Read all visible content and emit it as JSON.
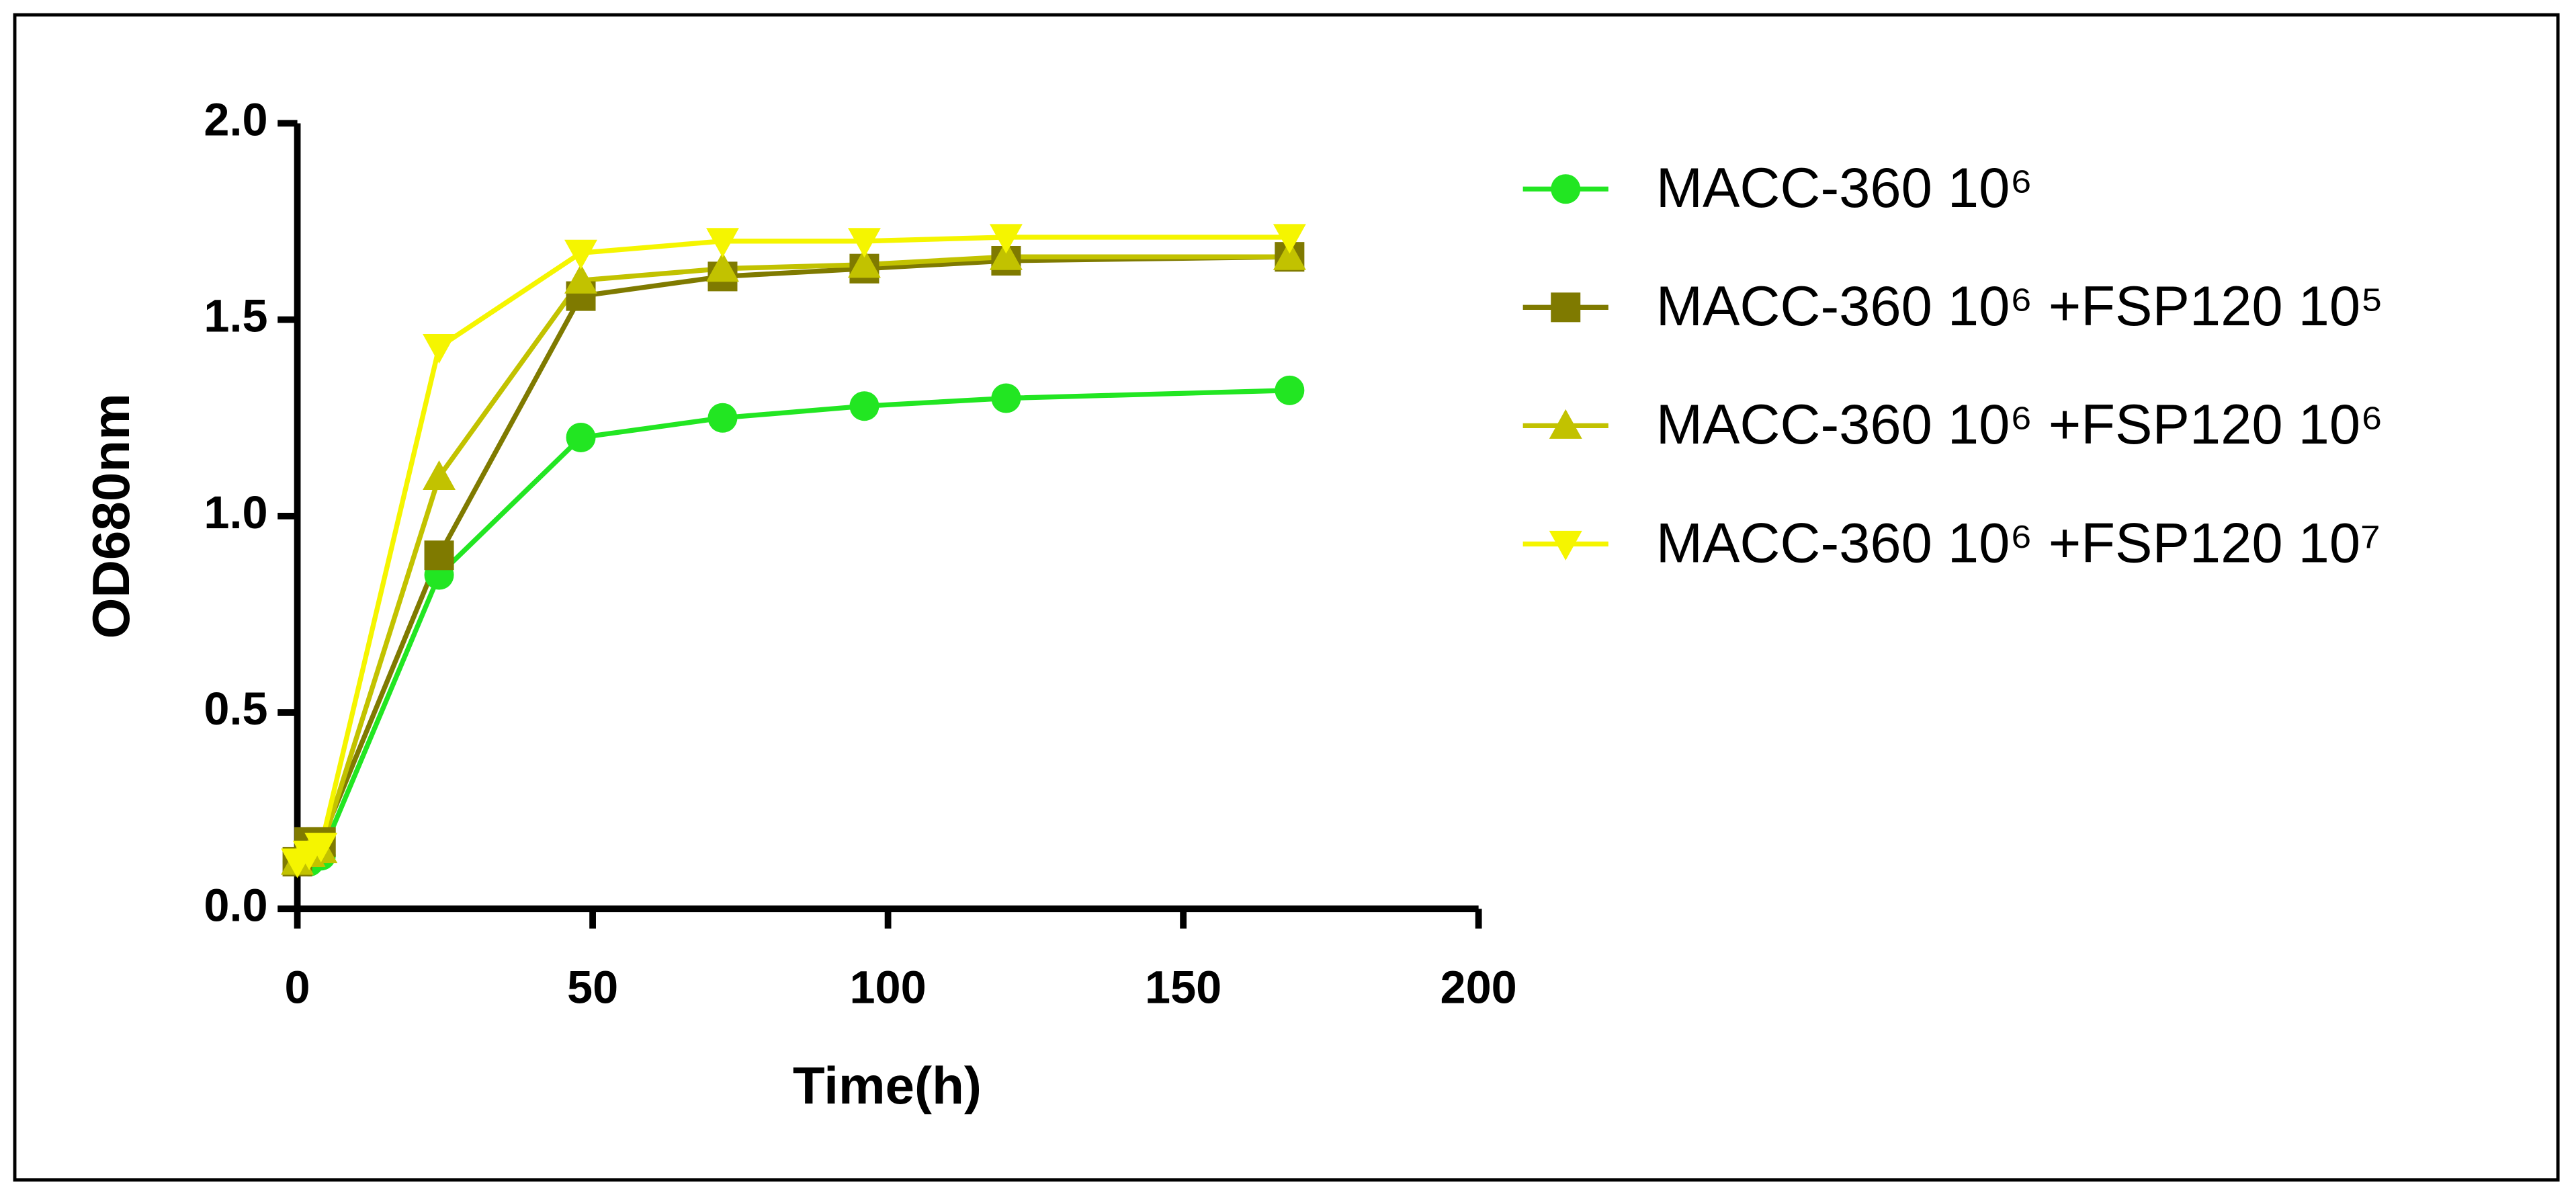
{
  "chart_data": {
    "type": "line",
    "xlabel": "Time(h)",
    "ylabel": "OD680nm",
    "x": [
      0,
      2,
      4,
      24,
      48,
      72,
      96,
      120,
      168
    ],
    "series": [
      {
        "name": "MACC-360 10⁶",
        "color": "#22e622",
        "marker": "circle",
        "values": [
          0.12,
          0.12,
          0.135,
          0.85,
          1.2,
          1.25,
          1.28,
          1.3,
          1.32
        ]
      },
      {
        "name": "MACC-360 10⁶ +FSP120 10⁵",
        "color": "#7f7a00",
        "marker": "square",
        "values": [
          0.12,
          0.17,
          0.17,
          0.9,
          1.56,
          1.61,
          1.63,
          1.65,
          1.66
        ]
      },
      {
        "name": "MACC-360 10⁶ +FSP120 10⁶",
        "color": "#c2c200",
        "marker": "triangle-up",
        "values": [
          0.12,
          0.14,
          0.15,
          1.1,
          1.6,
          1.63,
          1.64,
          1.66,
          1.66
        ]
      },
      {
        "name": "MACC-360 10⁶ +FSP120 10⁷",
        "color": "#f5f500",
        "marker": "triangle-down",
        "values": [
          0.12,
          0.14,
          0.16,
          1.43,
          1.67,
          1.7,
          1.7,
          1.71,
          1.71
        ]
      }
    ],
    "xlim": [
      0,
      200
    ],
    "xticks": [
      0,
      50,
      100,
      150,
      200
    ],
    "ylim": [
      0,
      2
    ],
    "yticks": [
      {
        "value": 0,
        "label": "0.0"
      },
      0.5,
      {
        "value": 1,
        "label": "1.0"
      },
      1.5,
      {
        "value": 2,
        "label": "2.0"
      }
    ],
    "grid": false,
    "legend": "right"
  }
}
